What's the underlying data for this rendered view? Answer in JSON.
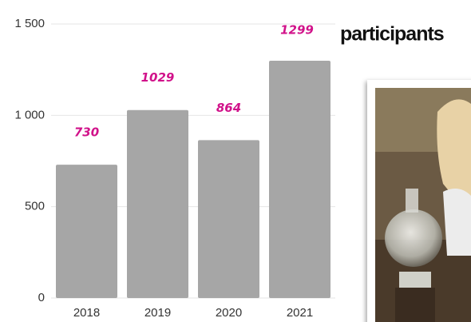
{
  "chart_data": {
    "type": "bar",
    "categories": [
      "2018",
      "2019",
      "2020",
      "2021"
    ],
    "values": [
      730,
      1029,
      864,
      1299
    ],
    "color": "#a6a6a6",
    "ylim": [
      0,
      1500
    ],
    "yticks": [
      0,
      500,
      {
        "value": 1000,
        "label": "1 000"
      },
      {
        "value": 1500,
        "label": "1 500"
      }
    ],
    "grid": true,
    "annotation": "participants"
  }
}
